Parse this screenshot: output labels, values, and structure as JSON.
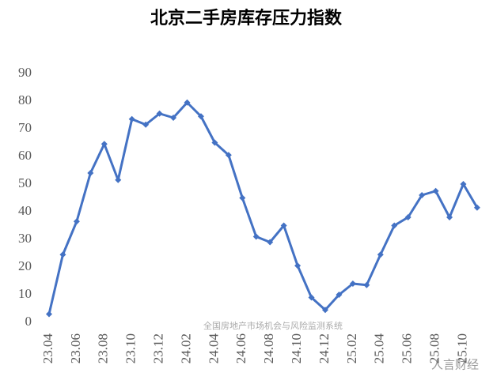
{
  "chart_data": {
    "type": "line",
    "title": "北京二手房库存压力指数",
    "categories": [
      "23.04",
      null,
      "23.06",
      null,
      "23.08",
      null,
      "23.10",
      null,
      "23.12",
      null,
      "24.02",
      null,
      "24.04",
      null,
      "24.06",
      null,
      "24.08",
      null,
      "24.10",
      null,
      "24.12",
      null,
      "25.02",
      null,
      "25.04",
      null,
      "25.06",
      null,
      "25.08",
      null,
      "25.10",
      null
    ],
    "values": [
      3,
      24.5,
      36.5,
      54,
      64.5,
      51.5,
      73.5,
      71.5,
      75.5,
      74,
      79.5,
      74.5,
      65,
      60.5,
      45,
      31,
      29,
      35,
      20.5,
      9,
      4.5,
      10,
      14,
      13.5,
      24.5,
      35,
      38,
      46,
      47.5,
      38,
      50,
      41.5
    ],
    "color": "#4472c4",
    "ylim": [
      0,
      90
    ],
    "yticks": [
      0,
      10,
      20,
      30,
      40,
      50,
      60,
      70,
      80,
      90
    ],
    "grid": false,
    "annotations": [
      "全国房地产市场机会与风险监测系统",
      "人言财经"
    ]
  }
}
